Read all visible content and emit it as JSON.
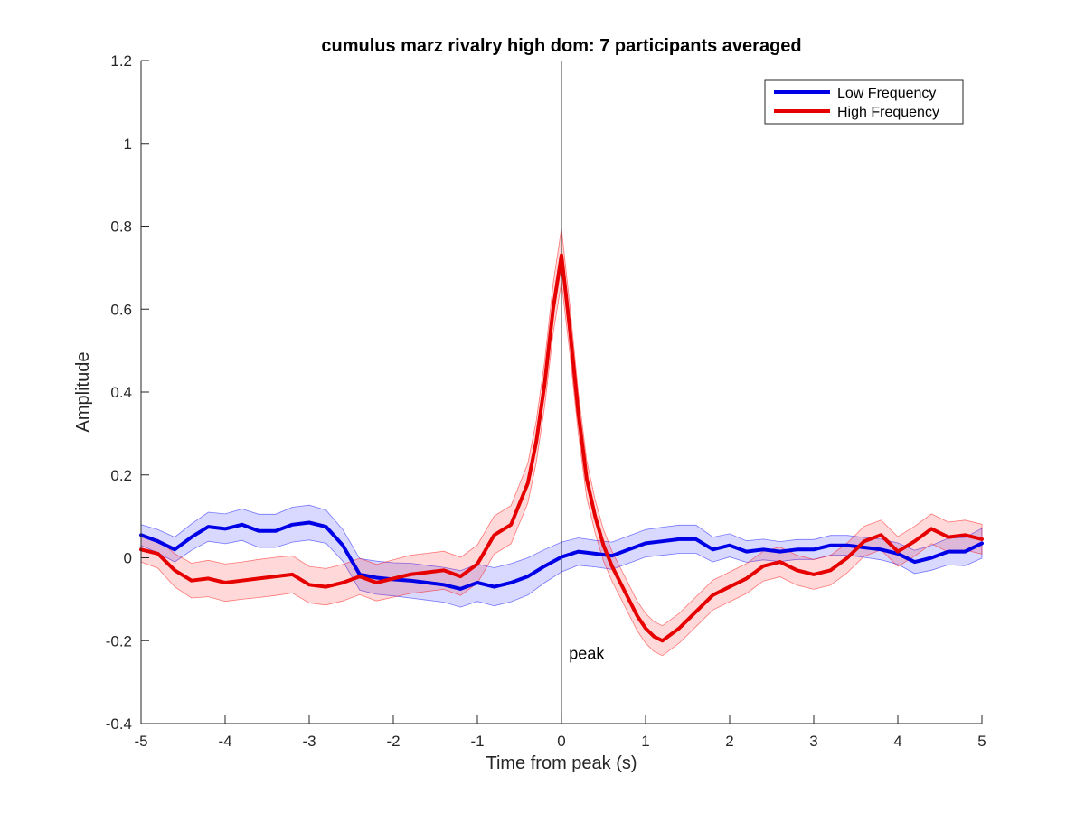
{
  "chart_data": {
    "type": "line",
    "title": "cumulus marz rivalry high dom: 7 participants averaged",
    "xlabel": "Time from peak (s)",
    "ylabel": "Amplitude",
    "xlim": [
      -5,
      5
    ],
    "ylim": [
      -0.4,
      1.2
    ],
    "xticks": [
      -5,
      -4,
      -3,
      -2,
      -1,
      0,
      1,
      2,
      3,
      4,
      5
    ],
    "yticks": [
      -0.4,
      -0.2,
      0,
      0.2,
      0.4,
      0.6,
      0.8,
      1,
      1.2
    ],
    "ytick_labels": [
      "-0.4",
      "-0.2",
      "0",
      "0.2",
      "0.4",
      "0.6",
      "0.8",
      "1",
      "1.2"
    ],
    "xtick_labels": [
      "-5",
      "-4",
      "-3",
      "-2",
      "-1",
      "0",
      "1",
      "2",
      "3",
      "4",
      "5"
    ],
    "grid": false,
    "legend_position": "top-right",
    "annotations": [
      {
        "text": "peak",
        "x": 0.1,
        "y": -0.24
      }
    ],
    "vertical_line": {
      "x": 0
    },
    "series": [
      {
        "name": "Low Frequency",
        "color": "#0000e6",
        "shade_color": "#0000ff",
        "x": [
          -5,
          -4.8,
          -4.6,
          -4.4,
          -4.2,
          -4,
          -3.8,
          -3.6,
          -3.4,
          -3.2,
          -3,
          -2.8,
          -2.6,
          -2.4,
          -2.2,
          -2,
          -1.8,
          -1.6,
          -1.4,
          -1.2,
          -1,
          -0.8,
          -0.6,
          -0.4,
          -0.2,
          0,
          0.2,
          0.4,
          0.6,
          0.8,
          1,
          1.2,
          1.4,
          1.6,
          1.8,
          2,
          2.2,
          2.4,
          2.6,
          2.8,
          3,
          3.2,
          3.4,
          3.6,
          3.8,
          4,
          4.2,
          4.4,
          4.6,
          4.8,
          5
        ],
        "y": [
          0.055,
          0.04,
          0.02,
          0.05,
          0.075,
          0.07,
          0.08,
          0.065,
          0.065,
          0.08,
          0.085,
          0.075,
          0.03,
          -0.04,
          -0.048,
          -0.052,
          -0.055,
          -0.06,
          -0.065,
          -0.075,
          -0.06,
          -0.07,
          -0.06,
          -0.045,
          -0.02,
          0.002,
          0.015,
          0.01,
          0.005,
          0.02,
          0.035,
          0.04,
          0.045,
          0.045,
          0.02,
          0.03,
          0.015,
          0.02,
          0.015,
          0.02,
          0.02,
          0.03,
          0.03,
          0.025,
          0.02,
          0.01,
          -0.01,
          0.0,
          0.015,
          0.015,
          0.035
        ],
        "err": [
          0.025,
          0.028,
          0.03,
          0.032,
          0.035,
          0.036,
          0.038,
          0.04,
          0.04,
          0.042,
          0.042,
          0.04,
          0.038,
          0.038,
          0.04,
          0.04,
          0.042,
          0.042,
          0.042,
          0.044,
          0.045,
          0.046,
          0.046,
          0.045,
          0.04,
          0.036,
          0.033,
          0.032,
          0.033,
          0.033,
          0.033,
          0.034,
          0.034,
          0.034,
          0.03,
          0.028,
          0.026,
          0.025,
          0.024,
          0.024,
          0.024,
          0.024,
          0.024,
          0.024,
          0.025,
          0.026,
          0.028,
          0.03,
          0.032,
          0.034,
          0.036
        ]
      },
      {
        "name": "High Frequency",
        "color": "#e60000",
        "shade_color": "#ff0000",
        "x": [
          -5,
          -4.8,
          -4.6,
          -4.4,
          -4.2,
          -4,
          -3.8,
          -3.6,
          -3.4,
          -3.2,
          -3,
          -2.8,
          -2.6,
          -2.4,
          -2.2,
          -2,
          -1.8,
          -1.6,
          -1.4,
          -1.2,
          -1,
          -0.8,
          -0.6,
          -0.4,
          -0.3,
          -0.2,
          -0.1,
          0,
          0.1,
          0.2,
          0.3,
          0.4,
          0.5,
          0.6,
          0.7,
          0.8,
          0.9,
          1,
          1.1,
          1.2,
          1.4,
          1.6,
          1.8,
          2,
          2.2,
          2.4,
          2.6,
          2.8,
          3,
          3.2,
          3.4,
          3.6,
          3.8,
          4,
          4.2,
          4.4,
          4.6,
          4.8,
          5
        ],
        "y": [
          0.02,
          0.01,
          -0.03,
          -0.055,
          -0.05,
          -0.06,
          -0.055,
          -0.05,
          -0.045,
          -0.04,
          -0.065,
          -0.07,
          -0.06,
          -0.045,
          -0.06,
          -0.05,
          -0.04,
          -0.035,
          -0.03,
          -0.045,
          -0.015,
          0.055,
          0.08,
          0.18,
          0.28,
          0.42,
          0.6,
          0.73,
          0.55,
          0.35,
          0.19,
          0.1,
          0.03,
          -0.02,
          -0.06,
          -0.1,
          -0.14,
          -0.17,
          -0.19,
          -0.2,
          -0.17,
          -0.13,
          -0.09,
          -0.07,
          -0.05,
          -0.02,
          -0.01,
          -0.03,
          -0.04,
          -0.03,
          0.0,
          0.04,
          0.055,
          0.015,
          0.04,
          0.07,
          0.05,
          0.055,
          0.045
        ],
        "err": [
          0.03,
          0.035,
          0.04,
          0.042,
          0.044,
          0.045,
          0.045,
          0.046,
          0.046,
          0.045,
          0.044,
          0.044,
          0.044,
          0.044,
          0.044,
          0.045,
          0.046,
          0.046,
          0.046,
          0.046,
          0.046,
          0.046,
          0.046,
          0.048,
          0.05,
          0.055,
          0.06,
          0.065,
          0.058,
          0.05,
          0.045,
          0.04,
          0.038,
          0.036,
          0.036,
          0.036,
          0.036,
          0.036,
          0.036,
          0.036,
          0.036,
          0.036,
          0.036,
          0.036,
          0.036,
          0.036,
          0.036,
          0.036,
          0.036,
          0.036,
          0.036,
          0.036,
          0.036,
          0.036,
          0.036,
          0.036,
          0.036,
          0.036,
          0.036
        ]
      }
    ]
  }
}
